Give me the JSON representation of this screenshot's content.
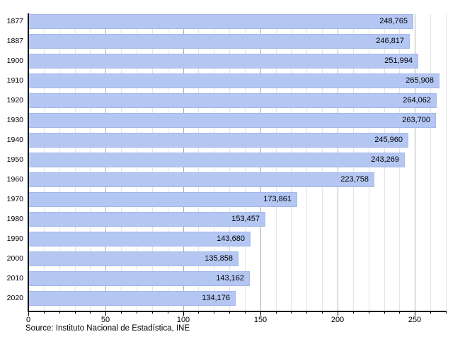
{
  "chart_data": {
    "type": "bar",
    "orientation": "horizontal",
    "title": "",
    "xlabel": "",
    "ylabel": "",
    "categories": [
      "1877",
      "1887",
      "1900",
      "1910",
      "1920",
      "1930",
      "1940",
      "1950",
      "1960",
      "1970",
      "1980",
      "1990",
      "2000",
      "2010",
      "2020"
    ],
    "values": [
      248765,
      246817,
      251994,
      265908,
      264062,
      263700,
      245960,
      243269,
      223758,
      173861,
      153457,
      143680,
      135858,
      143162,
      134176
    ],
    "value_labels": [
      "248,765",
      "246,817",
      "251,994",
      "265,908",
      "264,062",
      "263,700",
      "245,960",
      "243,269",
      "223,758",
      "173,861",
      "153,457",
      "143,680",
      "135,858",
      "143,162",
      "134,176"
    ],
    "x_axis_unit_scale": 1000,
    "x_tick_labels": [
      "0",
      "50",
      "100",
      "150",
      "200",
      "250"
    ],
    "x_major_tick_step": 50,
    "x_minor_tick_step": 10,
    "xlim": [
      0,
      270
    ],
    "grid": "vertical",
    "legend": "none",
    "source": "Source: Instituto Nacional de Estadística, INE",
    "colors": {
      "bar_fill": "#b4c7f3",
      "bar_border": "#a5b7ea",
      "major_grid": "#b0b0b0",
      "minor_grid": "#e4e4e4",
      "axis": "#000000",
      "text": "#000000",
      "background": "#ffffff"
    }
  }
}
